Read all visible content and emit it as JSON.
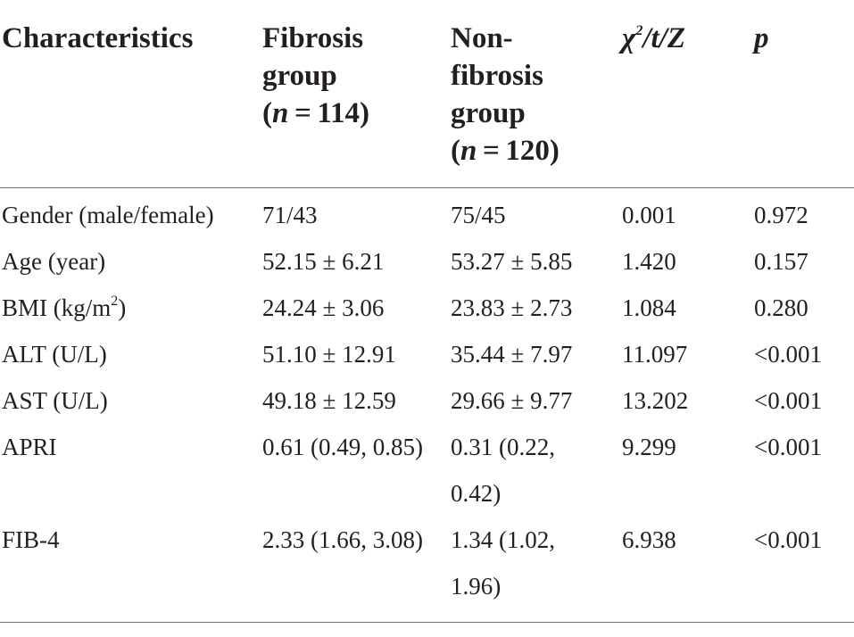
{
  "header": {
    "characteristics": "Characteristics",
    "fibrosis": [
      "Fibrosis",
      "group",
      "(n = 114)"
    ],
    "nonfibrosis": [
      "Non-",
      "fibrosis",
      "group",
      "(n = 120)"
    ],
    "stat": "χ2/t/Z",
    "p": "p"
  },
  "rows": [
    {
      "label": "Gender (male/female)",
      "fib": "71/43",
      "non": "75/45",
      "stat": "0.001",
      "p": "0.972"
    },
    {
      "label": "Age (year)",
      "fib": "52.15 ± 6.21",
      "non": "53.27 ± 5.85",
      "stat": "1.420",
      "p": "0.157"
    },
    {
      "label": "BMI (kg/m2)",
      "fib": "24.24 ± 3.06",
      "non": "23.83 ± 2.73",
      "stat": "1.084",
      "p": "0.280"
    },
    {
      "label": "ALT (U/L)",
      "fib": "51.10 ± 12.91",
      "non": "35.44 ± 7.97",
      "stat": "11.097",
      "p": "<0.001"
    },
    {
      "label": "AST (U/L)",
      "fib": "49.18 ± 12.59",
      "non": "29.66 ± 9.77",
      "stat": "13.202",
      "p": "<0.001"
    },
    {
      "label": "APRI",
      "fib": "0.61 (0.49, 0.85)",
      "non": "0.31 (0.22, 0.42)",
      "stat": "9.299",
      "p": "<0.001"
    },
    {
      "label": "FIB-4",
      "fib": "2.33 (1.66, 3.08)",
      "non": "1.34 (1.02, 1.96)",
      "stat": "6.938",
      "p": "<0.001"
    }
  ]
}
